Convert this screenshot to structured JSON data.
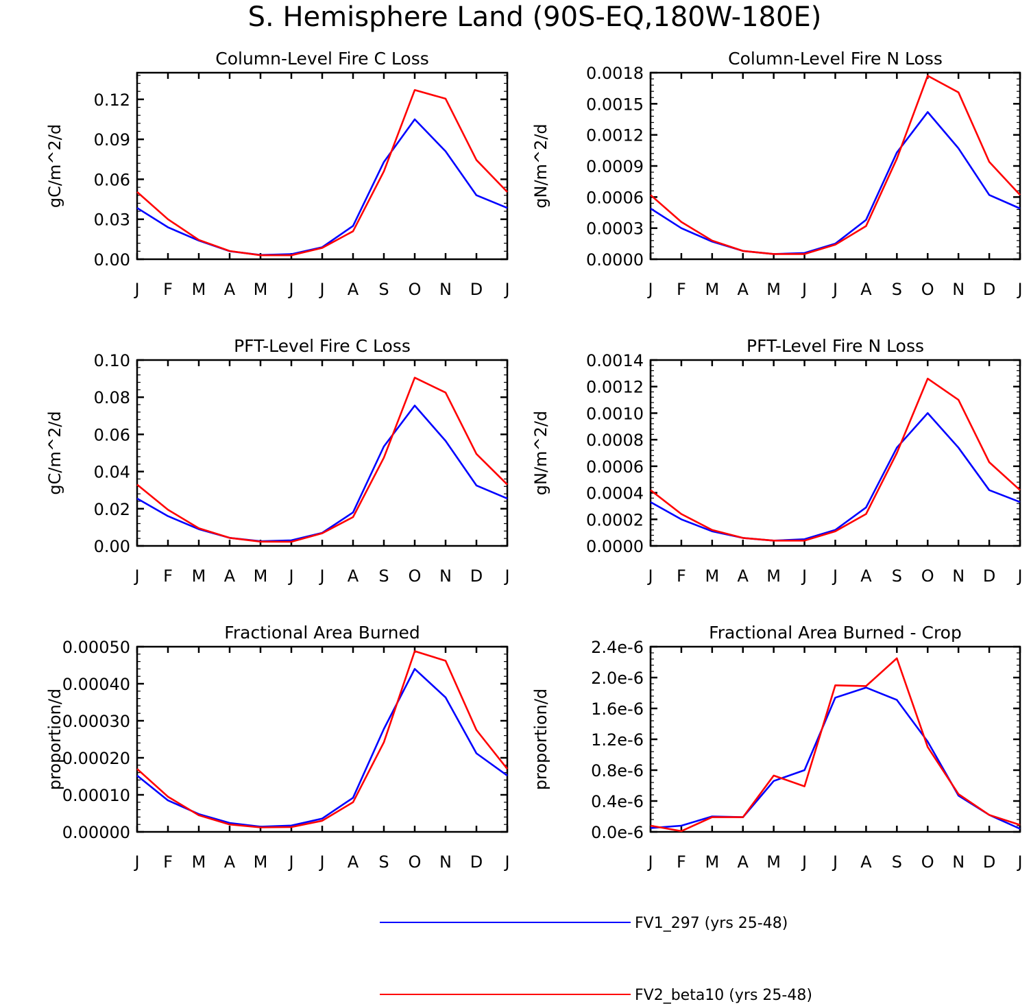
{
  "title": "S. Hemisphere Land (90S-EQ,180W-180E)",
  "months": [
    "J",
    "F",
    "M",
    "A",
    "M",
    "J",
    "J",
    "A",
    "S",
    "O",
    "N",
    "D",
    "J"
  ],
  "legend": [
    {
      "name": "FV1_297 (yrs 25-48)",
      "color": "#0000ff"
    },
    {
      "name": "FV2_beta10 (yrs 25-48)",
      "color": "#ff0000"
    }
  ],
  "chart_data": [
    {
      "type": "line",
      "title": "Column-Level Fire C Loss",
      "ylabel": "gC/m^2/d",
      "xlabel": "",
      "x": [
        "J",
        "F",
        "M",
        "A",
        "M",
        "J",
        "J",
        "A",
        "S",
        "O",
        "N",
        "D",
        "J"
      ],
      "ylim": [
        0,
        0.14
      ],
      "yticks": [
        0.0,
        0.03,
        0.06,
        0.09,
        0.12
      ],
      "ytick_labels": [
        "0.00",
        "0.03",
        "0.06",
        "0.09",
        "0.12"
      ],
      "series": [
        {
          "name": "FV1_297 (yrs 25-48)",
          "color": "#0000ff",
          "values": [
            0.0385,
            0.024,
            0.014,
            0.006,
            0.0032,
            0.0038,
            0.009,
            0.025,
            0.073,
            0.105,
            0.081,
            0.048,
            0.0385
          ]
        },
        {
          "name": "FV2_beta10 (yrs 25-48)",
          "color": "#ff0000",
          "values": [
            0.0505,
            0.03,
            0.0145,
            0.0062,
            0.003,
            0.003,
            0.0085,
            0.021,
            0.066,
            0.127,
            0.1205,
            0.0745,
            0.0505
          ]
        }
      ]
    },
    {
      "type": "line",
      "title": "Column-Level Fire N Loss",
      "ylabel": "gN/m^2/d",
      "xlabel": "",
      "x": [
        "J",
        "F",
        "M",
        "A",
        "M",
        "J",
        "J",
        "A",
        "S",
        "O",
        "N",
        "D",
        "J"
      ],
      "ylim": [
        0,
        0.0018
      ],
      "yticks": [
        0.0,
        0.0003,
        0.0006,
        0.0009,
        0.0012,
        0.0015,
        0.0018
      ],
      "ytick_labels": [
        "0.0000",
        "0.0003",
        "0.0006",
        "0.0009",
        "0.0012",
        "0.0015",
        "0.0018"
      ],
      "series": [
        {
          "name": "FV1_297 (yrs 25-48)",
          "color": "#0000ff",
          "values": [
            0.00049,
            0.0003,
            0.00017,
            8e-05,
            5e-05,
            6e-05,
            0.00015,
            0.00038,
            0.00103,
            0.00142,
            0.00107,
            0.00062,
            0.00049
          ]
        },
        {
          "name": "FV2_beta10 (yrs 25-48)",
          "color": "#ff0000",
          "values": [
            0.00062,
            0.00036,
            0.00018,
            8e-05,
            5e-05,
            5e-05,
            0.00014,
            0.00032,
            0.00097,
            0.00177,
            0.00161,
            0.00094,
            0.00062
          ]
        }
      ]
    },
    {
      "type": "line",
      "title": "PFT-Level Fire C Loss",
      "ylabel": "gC/m^2/d",
      "xlabel": "",
      "x": [
        "J",
        "F",
        "M",
        "A",
        "M",
        "J",
        "J",
        "A",
        "S",
        "O",
        "N",
        "D",
        "J"
      ],
      "ylim": [
        0,
        0.1
      ],
      "yticks": [
        0.0,
        0.02,
        0.04,
        0.06,
        0.08,
        0.1
      ],
      "ytick_labels": [
        "0.00",
        "0.02",
        "0.04",
        "0.06",
        "0.08",
        "0.10"
      ],
      "series": [
        {
          "name": "FV1_297 (yrs 25-48)",
          "color": "#0000ff",
          "values": [
            0.0255,
            0.016,
            0.009,
            0.0043,
            0.0025,
            0.003,
            0.007,
            0.018,
            0.0535,
            0.0755,
            0.0565,
            0.0325,
            0.0255
          ]
        },
        {
          "name": "FV2_beta10 (yrs 25-48)",
          "color": "#ff0000",
          "values": [
            0.033,
            0.0195,
            0.0095,
            0.0043,
            0.0023,
            0.0022,
            0.0068,
            0.0155,
            0.0475,
            0.0905,
            0.0825,
            0.0495,
            0.033
          ]
        }
      ]
    },
    {
      "type": "line",
      "title": "PFT-Level Fire N Loss",
      "ylabel": "gN/m^2/d",
      "xlabel": "",
      "x": [
        "J",
        "F",
        "M",
        "A",
        "M",
        "J",
        "J",
        "A",
        "S",
        "O",
        "N",
        "D",
        "J"
      ],
      "ylim": [
        0,
        0.0014
      ],
      "yticks": [
        0.0,
        0.0002,
        0.0004,
        0.0006,
        0.0008,
        0.001,
        0.0012,
        0.0014
      ],
      "ytick_labels": [
        "0.0000",
        "0.0002",
        "0.0004",
        "0.0006",
        "0.0008",
        "0.0010",
        "0.0012",
        "0.0014"
      ],
      "series": [
        {
          "name": "FV1_297 (yrs 25-48)",
          "color": "#0000ff",
          "values": [
            0.00033,
            0.0002,
            0.00011,
            6e-05,
            4e-05,
            5e-05,
            0.00012,
            0.00029,
            0.00074,
            0.001,
            0.00074,
            0.00042,
            0.00033
          ]
        },
        {
          "name": "FV2_beta10 (yrs 25-48)",
          "color": "#ff0000",
          "values": [
            0.00042,
            0.00024,
            0.00012,
            6e-05,
            4e-05,
            4e-05,
            0.00011,
            0.00024,
            0.0007,
            0.00126,
            0.0011,
            0.00063,
            0.00042
          ]
        }
      ]
    },
    {
      "type": "line",
      "title": "Fractional Area Burned",
      "ylabel": "proportion/d",
      "xlabel": "",
      "x": [
        "J",
        "F",
        "M",
        "A",
        "M",
        "J",
        "J",
        "A",
        "S",
        "O",
        "N",
        "D",
        "J"
      ],
      "ylim": [
        0,
        0.0005
      ],
      "yticks": [
        0.0,
        0.0001,
        0.0002,
        0.0003,
        0.0004,
        0.0005
      ],
      "ytick_labels": [
        "0.00000",
        "0.00010",
        "0.00020",
        "0.00030",
        "0.00040",
        "0.00050"
      ],
      "series": [
        {
          "name": "FV1_297 (yrs 25-48)",
          "color": "#0000ff",
          "values": [
            0.000152,
            8.5e-05,
            4.8e-05,
            2.4e-05,
            1.4e-05,
            1.7e-05,
            3.6e-05,
            9.2e-05,
            0.000278,
            0.00044,
            0.000363,
            0.000212,
            0.000152
          ]
        },
        {
          "name": "FV2_beta10 (yrs 25-48)",
          "color": "#ff0000",
          "values": [
            0.00017,
            9.5e-05,
            4.5e-05,
            2e-05,
            1.2e-05,
            1.3e-05,
            3e-05,
            8e-05,
            0.000242,
            0.000488,
            0.000462,
            0.000275,
            0.00017
          ]
        }
      ]
    },
    {
      "type": "line",
      "title": "Fractional Area Burned - Crop",
      "ylabel": "proportion/d",
      "xlabel": "",
      "x": [
        "J",
        "F",
        "M",
        "A",
        "M",
        "J",
        "J",
        "A",
        "S",
        "O",
        "N",
        "D",
        "J"
      ],
      "ylim": [
        0,
        2.4e-06
      ],
      "yticks": [
        0.0,
        4e-07,
        8e-07,
        1.2e-06,
        1.6e-06,
        2e-06,
        2.4e-06
      ],
      "ytick_labels": [
        "0.0e-6",
        "0.4e-6",
        "0.8e-6",
        "1.2e-6",
        "1.6e-6",
        "2.0e-6",
        "2.4e-6"
      ],
      "series": [
        {
          "name": "FV1_297 (yrs 25-48)",
          "color": "#0000ff",
          "values": [
            5e-08,
            8e-08,
            2e-07,
            1.9e-07,
            6.6e-07,
            8e-07,
            1.74e-06,
            1.87e-06,
            1.71e-06,
            1.17e-06,
            4.7e-07,
            2.2e-07,
            4e-08
          ]
        },
        {
          "name": "FV2_beta10 (yrs 25-48)",
          "color": "#ff0000",
          "values": [
            8e-08,
            1e-08,
            1.9e-07,
            1.9e-07,
            7.3e-07,
            5.9e-07,
            1.9e-06,
            1.89e-06,
            2.25e-06,
            1.1e-06,
            4.9e-07,
            2.2e-07,
            9e-08
          ]
        }
      ]
    }
  ]
}
